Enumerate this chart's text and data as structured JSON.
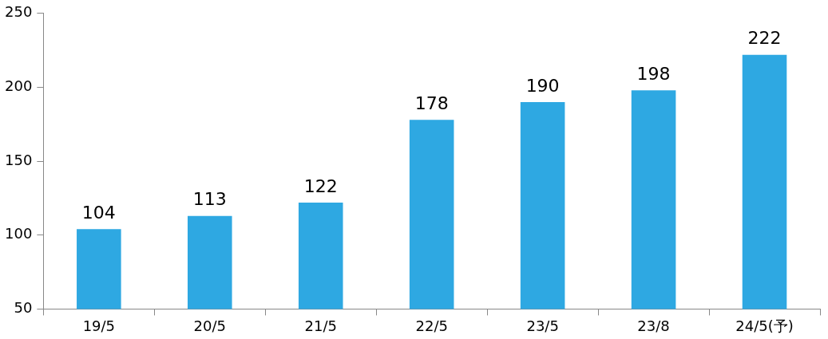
{
  "chart_data": {
    "type": "bar",
    "categories": [
      "19/5",
      "20/5",
      "21/5",
      "22/5",
      "23/5",
      "23/8",
      "24/5(予)"
    ],
    "values": [
      104,
      113,
      122,
      178,
      190,
      198,
      222
    ],
    "color": "#2ea8e2",
    "ylim": [
      50,
      250
    ],
    "yticks": [
      50,
      100,
      150,
      200,
      250
    ],
    "data_labels": true
  }
}
